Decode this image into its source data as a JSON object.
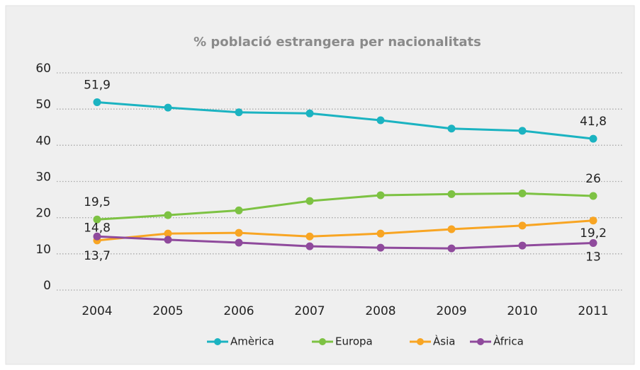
{
  "chart_data": {
    "type": "line",
    "title": "% població estrangera per nacionalitats",
    "categories": [
      "2004",
      "2005",
      "2006",
      "2007",
      "2008",
      "2009",
      "2010",
      "2011"
    ],
    "ylim": [
      0,
      60
    ],
    "yticks": [
      0,
      10,
      20,
      30,
      40,
      50,
      60
    ],
    "grid": true,
    "legend": "bottom",
    "series": [
      {
        "name": "Amèrica",
        "color": "#1bb3c1",
        "values": [
          51.9,
          50.4,
          49.1,
          48.8,
          46.9,
          44.6,
          44.0,
          41.8
        ],
        "value_labels": [
          "51,9",
          null,
          null,
          null,
          null,
          null,
          null,
          "41,8"
        ]
      },
      {
        "name": "Europa",
        "color": "#7dc243",
        "values": [
          19.5,
          20.7,
          22.0,
          24.6,
          26.2,
          26.5,
          26.7,
          26
        ],
        "value_labels": [
          "19,5",
          null,
          null,
          null,
          null,
          null,
          null,
          "26"
        ]
      },
      {
        "name": "Àsia",
        "color": "#f8a523",
        "values": [
          13.7,
          15.6,
          15.8,
          14.8,
          15.6,
          16.8,
          17.8,
          19.2
        ],
        "value_labels": [
          "13,7",
          null,
          null,
          null,
          null,
          null,
          null,
          "19,2"
        ]
      },
      {
        "name": "Àfrica",
        "color": "#8f4a9c",
        "values": [
          14.8,
          13.9,
          13.1,
          12.1,
          11.7,
          11.5,
          12.3,
          13
        ],
        "value_labels": [
          "14,8",
          null,
          null,
          null,
          null,
          null,
          null,
          "13"
        ]
      }
    ]
  }
}
